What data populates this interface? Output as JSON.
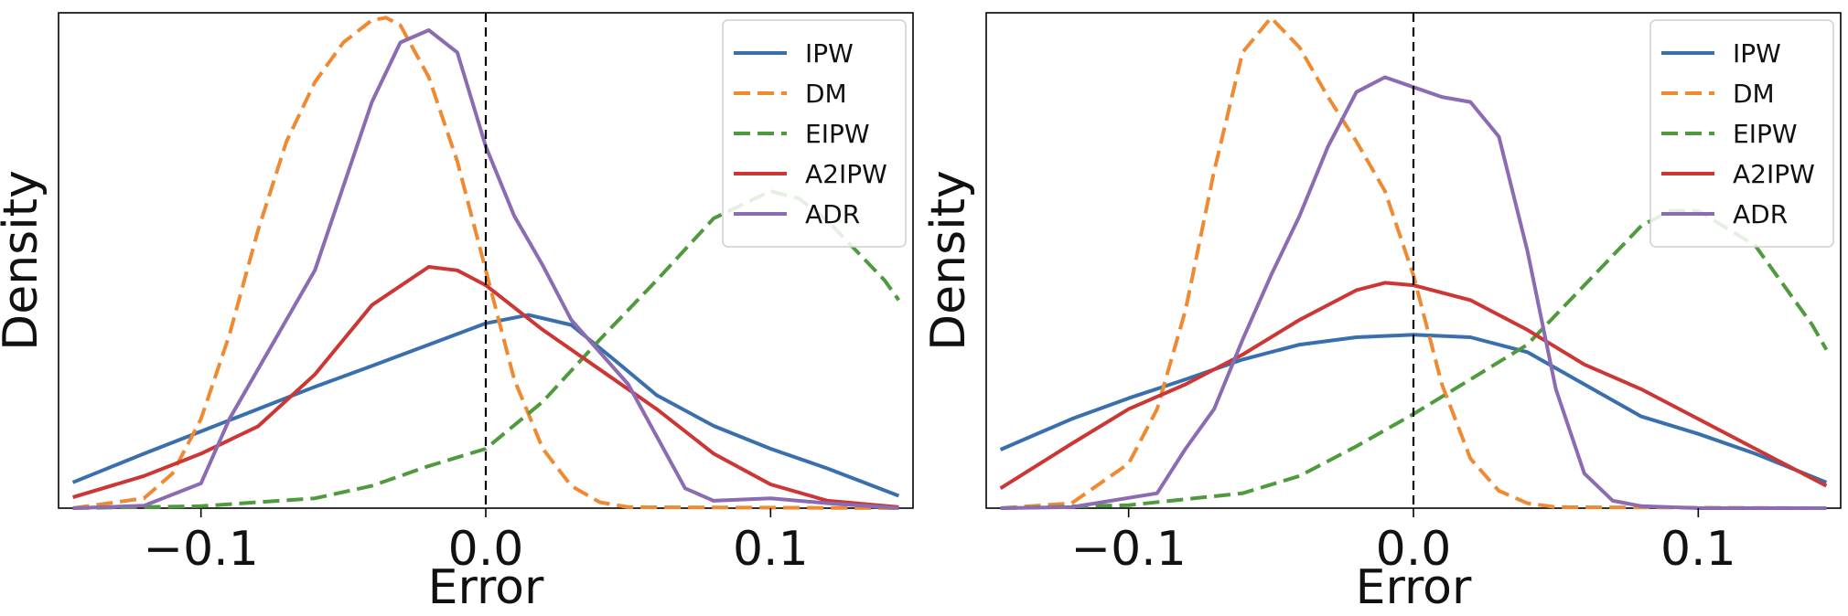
{
  "chart_data": [
    {
      "type": "line",
      "plot": "kde",
      "xlabel": "Error",
      "ylabel": "Density",
      "xlim": [
        -0.15,
        0.15
      ],
      "ylim": [
        0,
        1.0
      ],
      "xticks": [
        -0.1,
        0.0,
        0.1
      ],
      "xtick_labels": [
        "−0.1",
        "0.0",
        "0.1"
      ],
      "yticks_visible": false,
      "vline": {
        "x": 0.0,
        "style": "dashed",
        "color": "#000000"
      },
      "legend_position": "top-right",
      "series": [
        {
          "name": "IPW",
          "color": "#3a6fae",
          "dash": "solid",
          "x": [
            -0.145,
            -0.12,
            -0.1,
            -0.08,
            -0.06,
            -0.04,
            -0.02,
            0.0,
            0.015,
            0.03,
            0.045,
            0.06,
            0.08,
            0.1,
            0.12,
            0.145
          ],
          "y": [
            0.052,
            0.11,
            0.155,
            0.2,
            0.245,
            0.287,
            0.33,
            0.373,
            0.39,
            0.37,
            0.3,
            0.228,
            0.166,
            0.12,
            0.08,
            0.025
          ]
        },
        {
          "name": "DM",
          "color": "#ef8a33",
          "dash": "dashed",
          "x": [
            -0.145,
            -0.12,
            -0.11,
            -0.1,
            -0.09,
            -0.08,
            -0.07,
            -0.06,
            -0.05,
            -0.04,
            -0.035,
            -0.03,
            -0.02,
            -0.01,
            0.0,
            0.01,
            0.02,
            0.03,
            0.04,
            0.05,
            0.145
          ],
          "y": [
            0.0,
            0.02,
            0.07,
            0.18,
            0.35,
            0.56,
            0.74,
            0.86,
            0.94,
            0.985,
            0.99,
            0.975,
            0.87,
            0.7,
            0.48,
            0.26,
            0.12,
            0.045,
            0.012,
            0.002,
            0.0
          ]
        },
        {
          "name": "EIPW",
          "color": "#4e9a3c",
          "dash": "dashed",
          "x": [
            -0.145,
            -0.1,
            -0.06,
            -0.04,
            -0.02,
            0.0,
            0.02,
            0.04,
            0.06,
            0.08,
            0.1,
            0.11,
            0.12,
            0.14,
            0.145
          ],
          "y": [
            0.0,
            0.004,
            0.02,
            0.045,
            0.085,
            0.12,
            0.215,
            0.34,
            0.46,
            0.585,
            0.64,
            0.625,
            0.58,
            0.46,
            0.42
          ]
        },
        {
          "name": "A2IPW",
          "color": "#cc3634",
          "dash": "solid",
          "x": [
            -0.145,
            -0.12,
            -0.1,
            -0.08,
            -0.06,
            -0.04,
            -0.02,
            -0.01,
            0.0,
            0.02,
            0.04,
            0.06,
            0.08,
            0.1,
            0.12,
            0.145
          ],
          "y": [
            0.022,
            0.065,
            0.11,
            0.165,
            0.27,
            0.41,
            0.487,
            0.48,
            0.45,
            0.36,
            0.28,
            0.2,
            0.11,
            0.048,
            0.015,
            0.002
          ]
        },
        {
          "name": "ADR",
          "color": "#8b6bb1",
          "dash": "solid",
          "x": [
            -0.145,
            -0.12,
            -0.1,
            -0.09,
            -0.08,
            -0.06,
            -0.04,
            -0.03,
            -0.02,
            -0.01,
            0.0,
            0.01,
            0.02,
            0.03,
            0.05,
            0.07,
            0.08,
            0.1,
            0.12,
            0.145
          ],
          "y": [
            0.0,
            0.005,
            0.05,
            0.18,
            0.28,
            0.48,
            0.82,
            0.94,
            0.965,
            0.92,
            0.73,
            0.59,
            0.49,
            0.38,
            0.25,
            0.04,
            0.015,
            0.02,
            0.01,
            0.0
          ]
        }
      ]
    },
    {
      "type": "line",
      "plot": "kde",
      "xlabel": "Error",
      "ylabel": "Density",
      "xlim": [
        -0.15,
        0.15
      ],
      "ylim": [
        0,
        1.0
      ],
      "xticks": [
        -0.1,
        0.0,
        0.1
      ],
      "xtick_labels": [
        "−0.1",
        "0.0",
        "0.1"
      ],
      "yticks_visible": false,
      "vline": {
        "x": 0.0,
        "style": "dashed",
        "color": "#000000"
      },
      "legend_position": "top-right",
      "series": [
        {
          "name": "IPW",
          "color": "#3a6fae",
          "dash": "solid",
          "x": [
            -0.145,
            -0.12,
            -0.1,
            -0.08,
            -0.06,
            -0.04,
            -0.02,
            0.0,
            0.02,
            0.04,
            0.06,
            0.08,
            0.1,
            0.12,
            0.145
          ],
          "y": [
            0.118,
            0.18,
            0.222,
            0.26,
            0.3,
            0.33,
            0.345,
            0.35,
            0.345,
            0.315,
            0.25,
            0.185,
            0.15,
            0.11,
            0.052
          ]
        },
        {
          "name": "DM",
          "color": "#ef8a33",
          "dash": "dashed",
          "x": [
            -0.145,
            -0.12,
            -0.1,
            -0.09,
            -0.08,
            -0.07,
            -0.06,
            -0.05,
            -0.04,
            -0.03,
            -0.02,
            -0.01,
            0.0,
            0.01,
            0.02,
            0.03,
            0.04,
            0.05,
            0.145
          ],
          "y": [
            0.0,
            0.01,
            0.09,
            0.2,
            0.4,
            0.68,
            0.92,
            0.99,
            0.93,
            0.83,
            0.74,
            0.64,
            0.47,
            0.25,
            0.1,
            0.035,
            0.01,
            0.002,
            0.0
          ]
        },
        {
          "name": "EIPW",
          "color": "#4e9a3c",
          "dash": "dashed",
          "x": [
            -0.145,
            -0.1,
            -0.06,
            -0.04,
            -0.02,
            0.0,
            0.02,
            0.04,
            0.06,
            0.08,
            0.09,
            0.1,
            0.12,
            0.14,
            0.145
          ],
          "y": [
            0.0,
            0.006,
            0.03,
            0.065,
            0.125,
            0.19,
            0.26,
            0.33,
            0.45,
            0.57,
            0.6,
            0.6,
            0.53,
            0.37,
            0.32
          ]
        },
        {
          "name": "A2IPW",
          "color": "#cc3634",
          "dash": "solid",
          "x": [
            -0.145,
            -0.12,
            -0.1,
            -0.08,
            -0.06,
            -0.04,
            -0.02,
            -0.01,
            0.0,
            0.02,
            0.04,
            0.06,
            0.08,
            0.1,
            0.12,
            0.145
          ],
          "y": [
            0.04,
            0.13,
            0.2,
            0.25,
            0.31,
            0.38,
            0.44,
            0.455,
            0.45,
            0.42,
            0.36,
            0.29,
            0.24,
            0.18,
            0.12,
            0.045
          ]
        },
        {
          "name": "ADR",
          "color": "#8b6bb1",
          "dash": "solid",
          "x": [
            -0.145,
            -0.12,
            -0.09,
            -0.08,
            -0.07,
            -0.06,
            -0.05,
            -0.04,
            -0.03,
            -0.02,
            -0.01,
            0.0,
            0.01,
            0.02,
            0.03,
            0.04,
            0.045,
            0.05,
            0.06,
            0.07,
            0.08,
            0.1,
            0.145
          ],
          "y": [
            0.0,
            0.002,
            0.03,
            0.12,
            0.2,
            0.34,
            0.47,
            0.59,
            0.73,
            0.84,
            0.87,
            0.85,
            0.83,
            0.82,
            0.75,
            0.52,
            0.38,
            0.24,
            0.07,
            0.015,
            0.004,
            0.0,
            0.0
          ]
        }
      ]
    }
  ]
}
